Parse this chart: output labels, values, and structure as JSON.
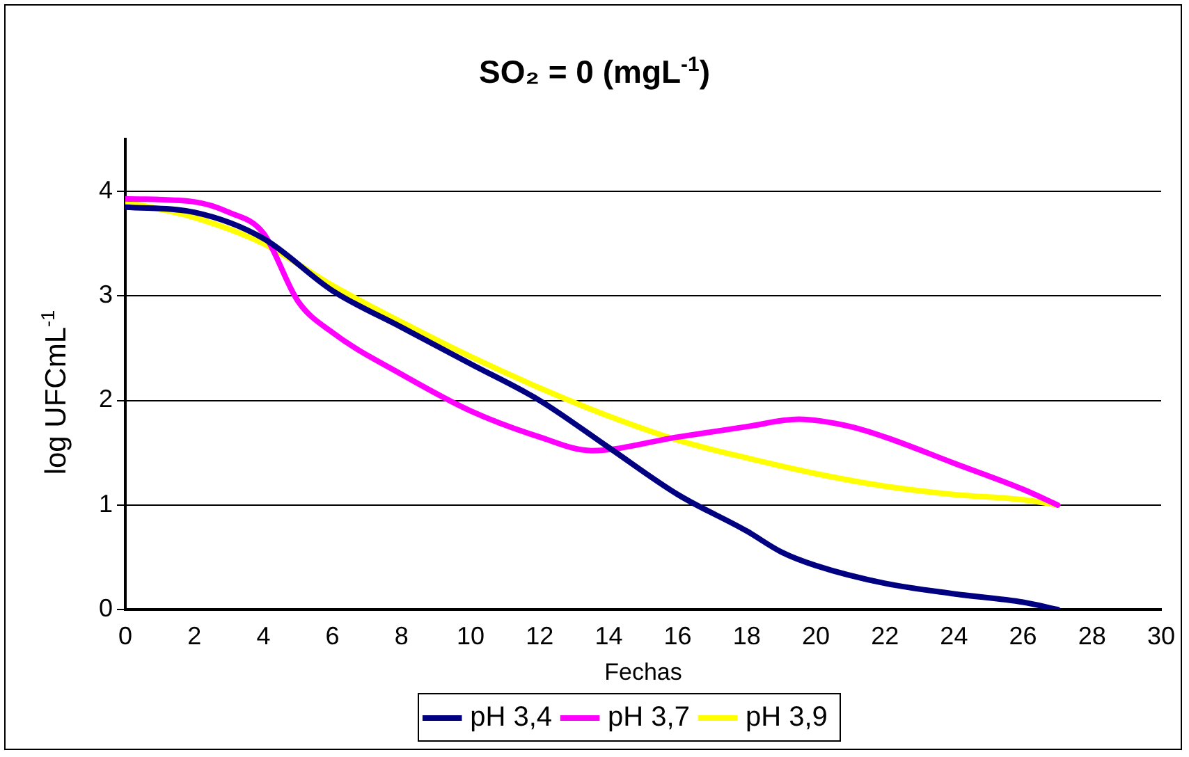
{
  "chart_data": {
    "type": "line",
    "title": "SO₂ = 0 (mgL$^{-1}$)",
    "xlabel": "Fechas",
    "ylabel": "log UFCmL$^{-1}$",
    "xlim": [
      0,
      30
    ],
    "xticks": [
      0,
      2,
      4,
      6,
      8,
      10,
      12,
      14,
      16,
      18,
      20,
      22,
      24,
      26,
      28,
      30
    ],
    "ylim": [
      0,
      4.5
    ],
    "yticks": [
      0,
      1,
      2,
      3,
      4
    ],
    "grid": "y",
    "legend": "bottom",
    "marker": "none",
    "line_style": "solid",
    "series": [
      {
        "name": "pH 3,4",
        "color": "#000080",
        "x": [
          0,
          2,
          4,
          6,
          8,
          10,
          12,
          14,
          16,
          18,
          19,
          20,
          22,
          24,
          26,
          27
        ],
        "values": [
          3.85,
          3.8,
          3.55,
          3.05,
          2.7,
          2.35,
          2.0,
          1.55,
          1.1,
          0.75,
          0.55,
          0.42,
          0.25,
          0.15,
          0.07,
          0
        ]
      },
      {
        "name": "pH 3,7",
        "color": "#ff00ff",
        "x": [
          0,
          2,
          3,
          4,
          5,
          6,
          8,
          10,
          12,
          13.5,
          16,
          18,
          19.5,
          21,
          22,
          24,
          26,
          27
        ],
        "values": [
          3.93,
          3.9,
          3.8,
          3.6,
          2.95,
          2.65,
          2.25,
          1.9,
          1.65,
          1.52,
          1.65,
          1.75,
          1.82,
          1.75,
          1.65,
          1.4,
          1.15,
          1.0
        ]
      },
      {
        "name": "pH 3,9",
        "color": "#ffff00",
        "x": [
          0,
          2,
          4,
          6,
          8,
          10,
          12,
          14,
          16,
          18,
          20,
          22,
          24,
          26,
          27
        ],
        "values": [
          3.9,
          3.75,
          3.5,
          3.1,
          2.75,
          2.42,
          2.12,
          1.85,
          1.62,
          1.45,
          1.3,
          1.18,
          1.1,
          1.05,
          1.0
        ]
      }
    ]
  }
}
